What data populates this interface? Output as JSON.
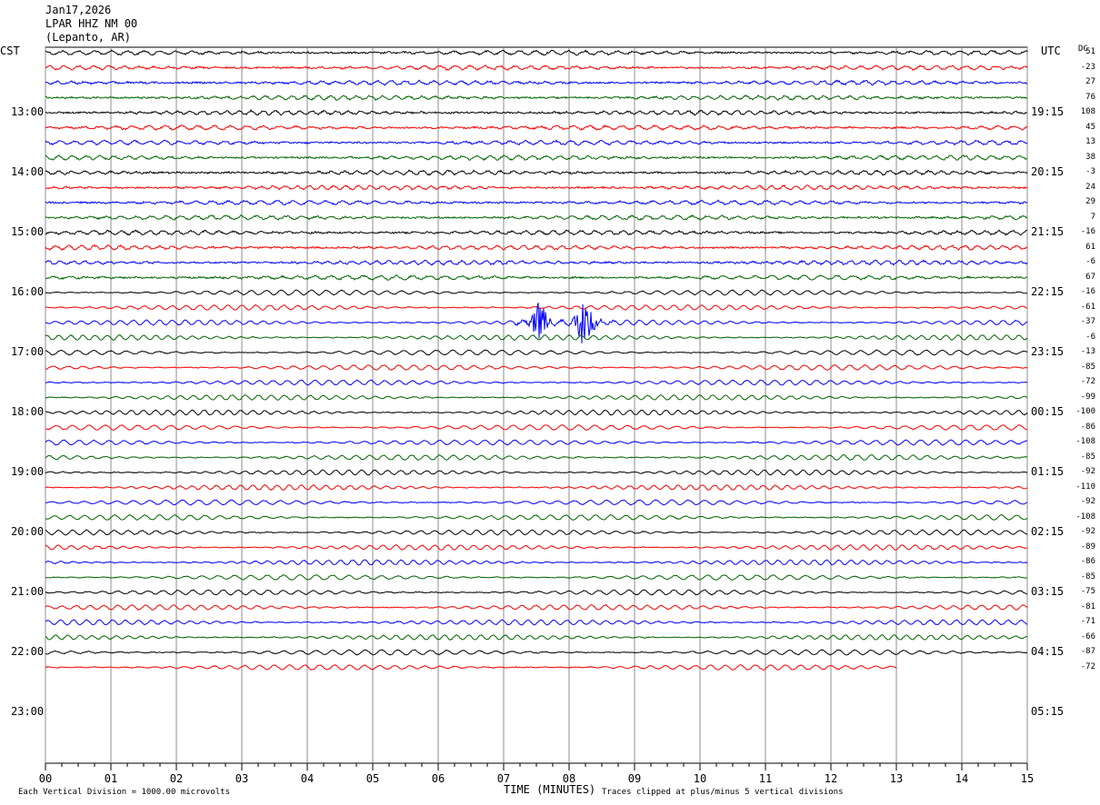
{
  "header": {
    "date": "Jan17,2026",
    "station": "LPAR HHZ NM 00",
    "location": "(Lepanto, AR)"
  },
  "left_zone": "CST",
  "right_zone": "UTC",
  "dc_label": "DC",
  "footer": {
    "xlabel": "TIME (MINUTES)",
    "scale_note": "Each Vertical Division = 1000.00 microvolts",
    "clip_note": "Traces clipped at plus/minus 5 vertical divisions"
  },
  "chart_data": {
    "type": "line",
    "title": "",
    "xlabel": "TIME (MINUTES)",
    "xlim": [
      0,
      15
    ],
    "x_ticks": [
      "00",
      "01",
      "02",
      "03",
      "04",
      "05",
      "06",
      "07",
      "08",
      "09",
      "10",
      "11",
      "12",
      "13",
      "14",
      "15"
    ],
    "grid": true,
    "left_hour_labels": [
      "13:00",
      "14:00",
      "15:00",
      "16:00",
      "17:00",
      "18:00",
      "19:00",
      "20:00",
      "21:00",
      "22:00",
      "23:00"
    ],
    "right_hour_labels": [
      "19:15",
      "20:15",
      "21:15",
      "22:15",
      "23:15",
      "00:15",
      "01:15",
      "02:15",
      "03:15",
      "04:15",
      "05:15"
    ],
    "trace_colors": [
      "#000000",
      "#ff0000",
      "#0000ff",
      "#006400"
    ],
    "dc_offsets": [
      "51",
      "-23",
      "27",
      "76",
      "108",
      "45",
      "13",
      "38",
      "-3",
      "24",
      "29",
      "7",
      "-16",
      "61",
      "-6",
      "67",
      "-16",
      "-61",
      "-37",
      "-6",
      "-13",
      "-85",
      "-72",
      "-99",
      "-100",
      "-86",
      "-108",
      "-85",
      "-92",
      "-110",
      "-92",
      "-108",
      "-92",
      "-89",
      "-86",
      "-85",
      "-75",
      "-81",
      "-71",
      "-66",
      "-87",
      "-72"
    ],
    "last_trace_end_minute": 13,
    "events": [
      {
        "trace_index": 18,
        "start_minute": 7.1,
        "end_minute": 8.7,
        "peak_divisions": 5
      }
    ]
  }
}
